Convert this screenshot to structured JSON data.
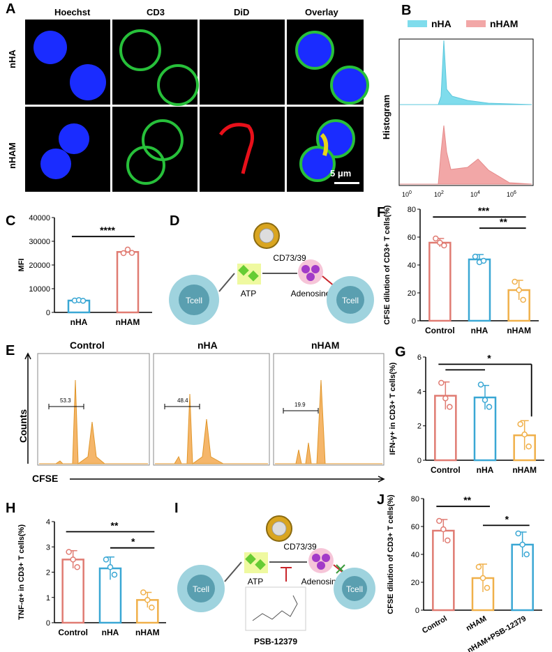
{
  "panels": {
    "A": "A",
    "B": "B",
    "C": "C",
    "D": "D",
    "E": "E",
    "F": "F",
    "G": "G",
    "H": "H",
    "I": "I",
    "J": "J"
  },
  "panel_a": {
    "col_headers": [
      "Hoechst",
      "CD3",
      "DiD",
      "Overlay"
    ],
    "row_labels": [
      "nHA",
      "nHAM"
    ],
    "scale_bar": "5 μm",
    "colors": {
      "hoechst": "#1a2cff",
      "cd3": "#27c03a",
      "did": "#e8101a"
    }
  },
  "panel_b": {
    "legend": [
      "nHA",
      "nHAM"
    ],
    "colors": [
      "#7fdcec",
      "#f2a7a7"
    ],
    "ylabel": "Histogram",
    "ticks": [
      "10",
      "2",
      "4",
      "6"
    ]
  },
  "panel_d": {
    "tcell": "Tcell",
    "enzyme": "CD73/39",
    "atp": "ATP",
    "adenosine": "Adenosine"
  },
  "panel_i": {
    "tcell": "Tcell",
    "enzyme": "CD73/39",
    "atp": "ATP",
    "adenosine": "Adenosine",
    "inhibitor": "PSB-12379"
  },
  "panel_e": {
    "titles": [
      "Control",
      "nHA",
      "nHAM"
    ],
    "gates": [
      "53.3",
      "48.4",
      "19.9"
    ],
    "ylabel": "Counts",
    "xlabel": "CFSE",
    "color": "#f5b66a"
  },
  "chart_data": [
    {
      "id": "C",
      "type": "bar",
      "categories": [
        "nHA",
        "nHAM"
      ],
      "values": [
        5000,
        25500
      ],
      "points": [
        [
          5000,
          5200,
          4900
        ],
        [
          25000,
          26500,
          25100
        ]
      ],
      "colors": [
        "#3aa7d4",
        "#e07b72"
      ],
      "ylabel": "MFI",
      "ylim": [
        0,
        40000
      ],
      "yticks": [
        "0",
        "10000",
        "20000",
        "30000",
        "40000"
      ],
      "sig": [
        "****"
      ]
    },
    {
      "id": "F",
      "type": "bar",
      "categories": [
        "Control",
        "nHA",
        "nHAM"
      ],
      "values": [
        56,
        44,
        22
      ],
      "errors": [
        3,
        3.5,
        7
      ],
      "points": [
        [
          59,
          56,
          54
        ],
        [
          46,
          42,
          43
        ],
        [
          28,
          22,
          15
        ]
      ],
      "colors": [
        "#e07b72",
        "#3aa7d4",
        "#f0b04a"
      ],
      "ylabel": "CFSE dilution of CD3+ T cells(%)",
      "ylim": [
        0,
        80
      ],
      "yticks": [
        "0",
        "20",
        "40",
        "60",
        "80"
      ],
      "sig": [
        "***",
        "**"
      ]
    },
    {
      "id": "G",
      "type": "bar",
      "categories": [
        "Control",
        "nHA",
        "nHAM"
      ],
      "values": [
        3.75,
        3.65,
        1.45
      ],
      "errors": [
        0.8,
        0.7,
        0.85
      ],
      "points": [
        [
          4.5,
          3.6,
          3.1
        ],
        [
          4.4,
          3.5,
          3.1
        ],
        [
          2.1,
          1.5,
          0.8
        ]
      ],
      "colors": [
        "#e07b72",
        "#3aa7d4",
        "#f0b04a"
      ],
      "ylabel": "IFN-γ+ in CD3+ T cells(%)",
      "ylim": [
        0,
        6
      ],
      "yticks": [
        "0",
        "2",
        "4",
        "6"
      ],
      "sig": [
        "*"
      ]
    },
    {
      "id": "H",
      "type": "bar",
      "categories": [
        "Control",
        "nHA",
        "nHAM"
      ],
      "values": [
        2.5,
        2.15,
        0.9
      ],
      "errors": [
        0.35,
        0.45,
        0.3
      ],
      "points": [
        [
          2.8,
          2.5,
          2.2
        ],
        [
          2.5,
          2.2,
          1.9
        ],
        [
          1.2,
          0.9,
          0.6
        ]
      ],
      "colors": [
        "#e07b72",
        "#3aa7d4",
        "#f0b04a"
      ],
      "ylabel": "TNF-α+ in CD3+ T cells(%)",
      "ylim": [
        0,
        4
      ],
      "yticks": [
        "0",
        "1",
        "2",
        "3",
        "4"
      ],
      "sig": [
        "**",
        "*"
      ]
    },
    {
      "id": "J",
      "type": "bar",
      "categories": [
        "Control",
        "nHAM",
        "nHAM+PSB-12379"
      ],
      "values": [
        57,
        23,
        47
      ],
      "errors": [
        8,
        10,
        9
      ],
      "points": [
        [
          64,
          58,
          50
        ],
        [
          31,
          23,
          16
        ],
        [
          55,
          47,
          40
        ]
      ],
      "colors": [
        "#e07b72",
        "#f0b04a",
        "#3aa7d4"
      ],
      "ylabel": "CFSE dilution of CD3+ T cells(%)",
      "ylim": [
        0,
        80
      ],
      "yticks": [
        "0",
        "20",
        "40",
        "60",
        "80"
      ],
      "sig": [
        "**",
        "*"
      ]
    }
  ]
}
